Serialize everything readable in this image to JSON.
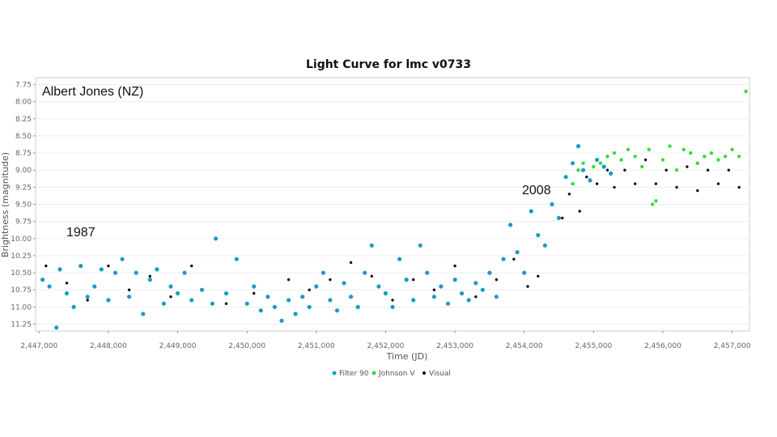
{
  "chart_data": {
    "type": "scatter",
    "title": "Light Curve for lmc v0733",
    "xlabel": "Time (JD)",
    "ylabel": "Brightness (magnitude)",
    "xlim": [
      2446950,
      2457250
    ],
    "ylim": [
      11.35,
      7.65
    ],
    "y_inverted": true,
    "yticks": [
      7.75,
      8.0,
      8.25,
      8.5,
      8.75,
      9.0,
      9.25,
      9.5,
      9.75,
      10.0,
      10.25,
      10.5,
      10.75,
      11.0,
      11.25
    ],
    "ytick_labels": [
      "7.75",
      "8.00",
      "8.25",
      "8.50",
      "8.75",
      "9.00",
      "9.25",
      "9.50",
      "9.75",
      "10.00",
      "10.25",
      "10.50",
      "10.75",
      "11.00",
      "11.25"
    ],
    "xticks": [
      2447000,
      2448000,
      2449000,
      2450000,
      2451000,
      2452000,
      2453000,
      2454000,
      2455000,
      2456000,
      2457000
    ],
    "xtick_labels": [
      "2,447,000",
      "2,448,000",
      "2,449,000",
      "2,450,000",
      "2,451,000",
      "2,452,000",
      "2,453,000",
      "2,454,000",
      "2,455,000",
      "2,456,000",
      "2,457,000"
    ],
    "legend": {
      "placement": "bottom-center"
    },
    "series": [
      {
        "name": "Filter 90",
        "color": "#1e9bc0",
        "points": [
          [
            2447050,
            10.6
          ],
          [
            2447150,
            10.7
          ],
          [
            2447250,
            11.3
          ],
          [
            2447300,
            10.45
          ],
          [
            2447400,
            10.8
          ],
          [
            2447500,
            11.0
          ],
          [
            2447600,
            10.4
          ],
          [
            2447700,
            10.85
          ],
          [
            2447800,
            10.7
          ],
          [
            2447900,
            10.45
          ],
          [
            2448000,
            10.9
          ],
          [
            2448100,
            10.5
          ],
          [
            2448200,
            10.3
          ],
          [
            2448300,
            10.85
          ],
          [
            2448400,
            10.5
          ],
          [
            2448500,
            11.1
          ],
          [
            2448600,
            10.6
          ],
          [
            2448700,
            10.45
          ],
          [
            2448800,
            10.95
          ],
          [
            2448900,
            10.7
          ],
          [
            2449000,
            10.8
          ],
          [
            2449100,
            10.5
          ],
          [
            2449200,
            10.9
          ],
          [
            2449350,
            10.75
          ],
          [
            2449500,
            10.95
          ],
          [
            2449550,
            10.0
          ],
          [
            2449700,
            10.8
          ],
          [
            2449850,
            10.3
          ],
          [
            2450000,
            10.95
          ],
          [
            2450100,
            10.7
          ],
          [
            2450200,
            11.05
          ],
          [
            2450300,
            10.85
          ],
          [
            2450400,
            11.0
          ],
          [
            2450500,
            11.2
          ],
          [
            2450600,
            10.9
          ],
          [
            2450700,
            11.1
          ],
          [
            2450800,
            10.85
          ],
          [
            2450900,
            11.0
          ],
          [
            2451000,
            10.7
          ],
          [
            2451100,
            10.5
          ],
          [
            2451200,
            10.9
          ],
          [
            2451300,
            11.05
          ],
          [
            2451400,
            10.65
          ],
          [
            2451500,
            10.85
          ],
          [
            2451600,
            11.0
          ],
          [
            2451700,
            10.5
          ],
          [
            2451800,
            10.1
          ],
          [
            2451900,
            10.7
          ],
          [
            2452000,
            10.8
          ],
          [
            2452100,
            11.0
          ],
          [
            2452200,
            10.3
          ],
          [
            2452300,
            10.6
          ],
          [
            2452400,
            10.9
          ],
          [
            2452500,
            10.1
          ],
          [
            2452600,
            10.5
          ],
          [
            2452700,
            10.85
          ],
          [
            2452800,
            10.7
          ],
          [
            2452900,
            10.95
          ],
          [
            2453000,
            10.6
          ],
          [
            2453100,
            10.8
          ],
          [
            2453200,
            10.9
          ],
          [
            2453300,
            10.65
          ],
          [
            2453400,
            10.75
          ],
          [
            2453500,
            10.5
          ],
          [
            2453600,
            10.85
          ],
          [
            2453700,
            10.3
          ],
          [
            2453800,
            9.8
          ],
          [
            2453900,
            10.2
          ],
          [
            2454000,
            10.5
          ],
          [
            2454100,
            9.6
          ],
          [
            2454200,
            9.95
          ],
          [
            2454300,
            10.1
          ],
          [
            2454400,
            9.5
          ],
          [
            2454500,
            9.7
          ],
          [
            2454600,
            9.1
          ],
          [
            2454700,
            8.9
          ],
          [
            2454780,
            8.65
          ],
          [
            2454850,
            9.0
          ],
          [
            2454950,
            9.15
          ],
          [
            2455050,
            8.85
          ],
          [
            2455150,
            8.95
          ],
          [
            2455250,
            9.05
          ]
        ]
      },
      {
        "name": "Johnson V",
        "color": "#33dd33",
        "points": [
          [
            2454700,
            9.2
          ],
          [
            2454780,
            9.0
          ],
          [
            2454850,
            8.9
          ],
          [
            2455000,
            8.95
          ],
          [
            2455100,
            8.9
          ],
          [
            2455200,
            8.8
          ],
          [
            2455300,
            8.75
          ],
          [
            2455400,
            8.85
          ],
          [
            2455500,
            8.7
          ],
          [
            2455600,
            8.8
          ],
          [
            2455700,
            8.95
          ],
          [
            2455800,
            8.7
          ],
          [
            2455850,
            9.5
          ],
          [
            2455900,
            9.45
          ],
          [
            2456000,
            8.85
          ],
          [
            2456100,
            8.65
          ],
          [
            2456200,
            9.0
          ],
          [
            2456300,
            8.7
          ],
          [
            2456400,
            8.75
          ],
          [
            2456500,
            8.9
          ],
          [
            2456600,
            8.8
          ],
          [
            2456700,
            8.75
          ],
          [
            2456800,
            8.85
          ],
          [
            2456900,
            8.8
          ],
          [
            2457000,
            8.7
          ],
          [
            2457100,
            8.8
          ],
          [
            2457200,
            7.85
          ]
        ]
      },
      {
        "name": "Visual",
        "color": "#111111",
        "points": [
          [
            2447100,
            10.4
          ],
          [
            2447400,
            10.65
          ],
          [
            2447700,
            10.9
          ],
          [
            2448000,
            10.4
          ],
          [
            2448300,
            10.75
          ],
          [
            2448600,
            10.55
          ],
          [
            2448900,
            10.85
          ],
          [
            2449200,
            10.4
          ],
          [
            2449700,
            10.95
          ],
          [
            2450100,
            10.8
          ],
          [
            2450600,
            10.6
          ],
          [
            2450900,
            10.75
          ],
          [
            2451200,
            10.6
          ],
          [
            2451500,
            10.35
          ],
          [
            2451800,
            10.55
          ],
          [
            2452100,
            10.9
          ],
          [
            2452400,
            10.6
          ],
          [
            2452700,
            10.75
          ],
          [
            2453000,
            10.4
          ],
          [
            2453300,
            10.85
          ],
          [
            2453600,
            10.6
          ],
          [
            2453850,
            10.3
          ],
          [
            2454050,
            10.7
          ],
          [
            2454200,
            10.55
          ],
          [
            2454400,
            9.5
          ],
          [
            2454550,
            9.7
          ],
          [
            2454650,
            9.35
          ],
          [
            2454800,
            9.6
          ],
          [
            2454900,
            9.1
          ],
          [
            2455050,
            9.2
          ],
          [
            2455200,
            9.0
          ],
          [
            2455300,
            9.25
          ],
          [
            2455450,
            9.0
          ],
          [
            2455600,
            9.2
          ],
          [
            2455750,
            8.85
          ],
          [
            2455900,
            9.2
          ],
          [
            2456050,
            9.0
          ],
          [
            2456200,
            9.25
          ],
          [
            2456350,
            8.95
          ],
          [
            2456500,
            9.3
          ],
          [
            2456650,
            9.0
          ],
          [
            2456800,
            9.2
          ],
          [
            2456950,
            9.0
          ],
          [
            2457100,
            9.25
          ]
        ]
      }
    ],
    "annotations": [
      {
        "text": "Albert Jones (NZ)",
        "at": "top-left"
      },
      {
        "text": "1987",
        "at": "left"
      },
      {
        "text": "2008",
        "at": "upper-right of rise"
      }
    ]
  }
}
